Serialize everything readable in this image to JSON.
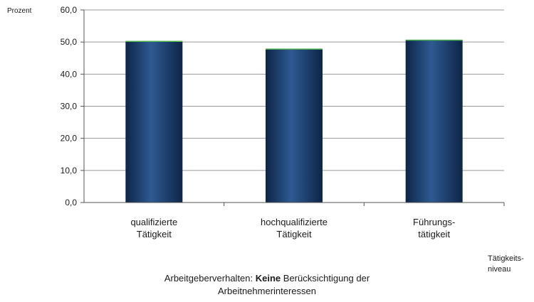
{
  "chart_data": {
    "type": "bar",
    "y_unit_label": "Prozent",
    "x_axis_label": "Tätigkeits-\nniveau",
    "categories": [
      [
        "qualifizierte",
        "Tätigkeit"
      ],
      [
        "hochqualifizierte",
        "Tätigkeit"
      ],
      [
        "Führungs-",
        "tätigkeit"
      ]
    ],
    "values": [
      50.2,
      47.8,
      50.6
    ],
    "ylim": [
      0,
      60
    ],
    "yticks": [
      "0,0",
      "10,0",
      "20,0",
      "30,0",
      "40,0",
      "50,0",
      "60,0"
    ],
    "grid": true,
    "colors": {
      "bar_dark": "#0d2547",
      "bar_mid": "#2e5a92",
      "bar_top": "#4caf50",
      "grid": "#9a9a9a"
    }
  },
  "caption": {
    "prefix": "Arbeitgeberverhalten: ",
    "bold": "Keine",
    "suffix": " Berücksichtigung der",
    "line2": "Arbeitnehmerinteressen"
  }
}
